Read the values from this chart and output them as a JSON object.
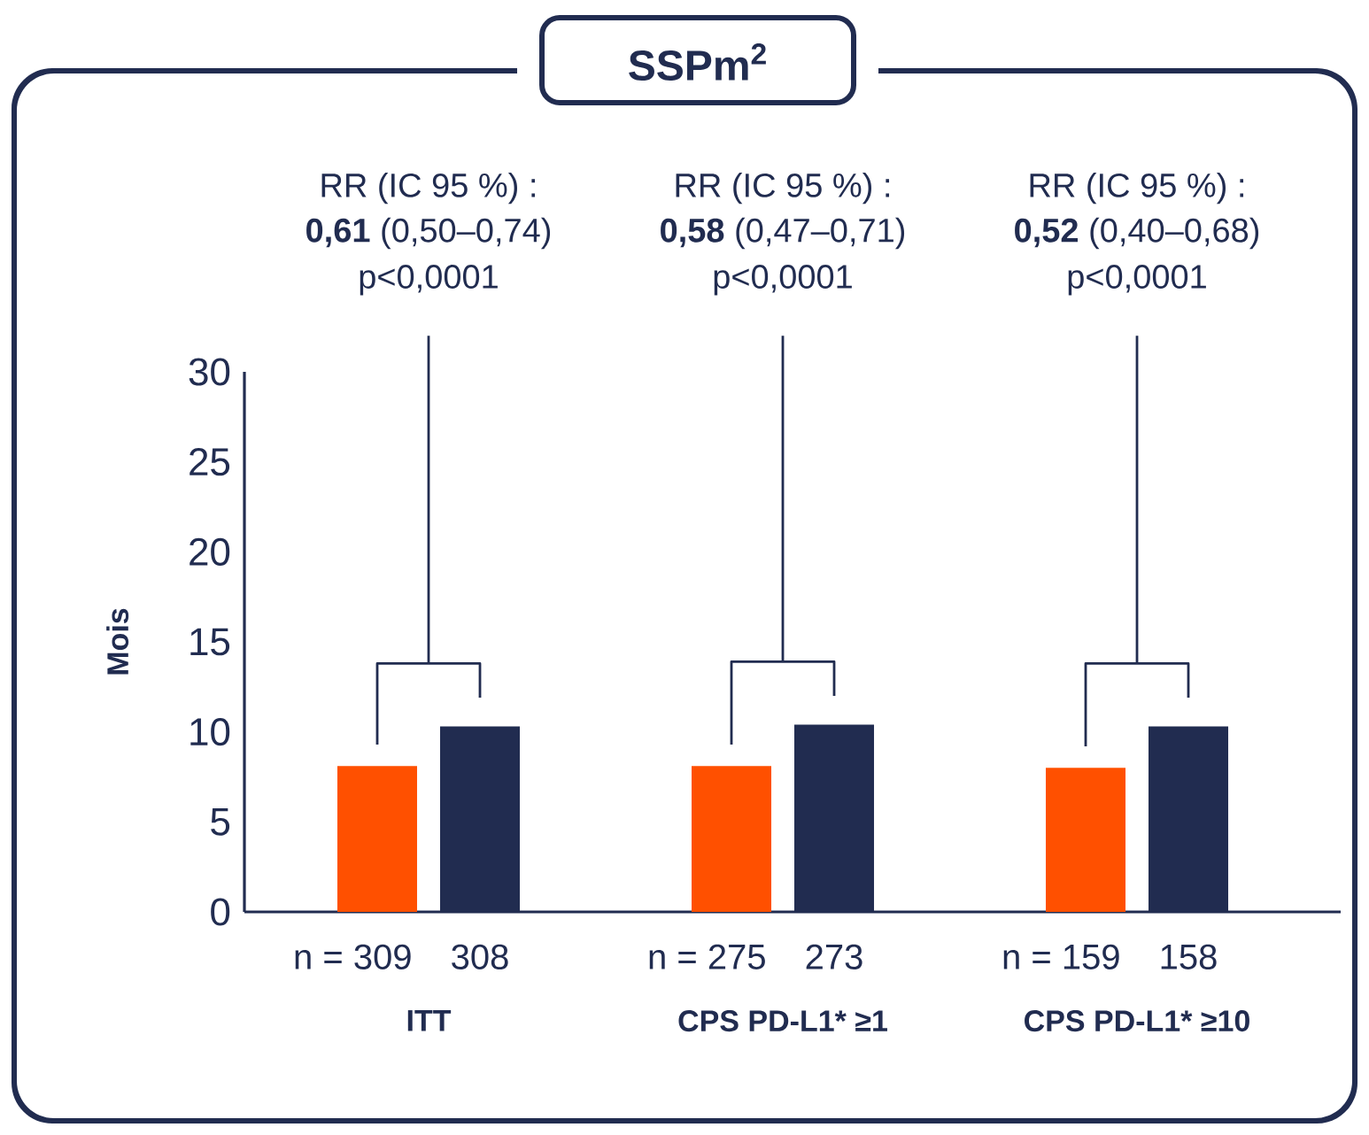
{
  "chart_data": {
    "type": "bar",
    "title": "SSPm$^{2}$",
    "ylabel": "Mois",
    "categories": [
      "ITT",
      "CPS PD-L1* ≥1",
      "CPS PD-L1* ≥10"
    ],
    "series": [
      {
        "color": "#ff5000",
        "values": [
          8.1,
          8.1,
          8.0
        ]
      },
      {
        "color": "#212c50",
        "values": [
          10.3,
          10.4,
          10.3
        ]
      }
    ],
    "ylim": [
      0,
      30
    ],
    "yticks": [
      0,
      5,
      10,
      15,
      20,
      25,
      30
    ],
    "grid": false,
    "annotations": [
      "RR (IC 95 %) :",
      "**0,61** (0,50–0,74)",
      "p<0,0001",
      "RR (IC 95 %) :",
      "**0,58** (0,47–0,71)",
      "p<0,0001",
      "RR (IC 95 %) :",
      "**0,52** (0,40–0,68)",
      "p<0,0001",
      "n = 309",
      "308",
      "n = 275",
      "273",
      "n = 159",
      "158"
    ]
  }
}
